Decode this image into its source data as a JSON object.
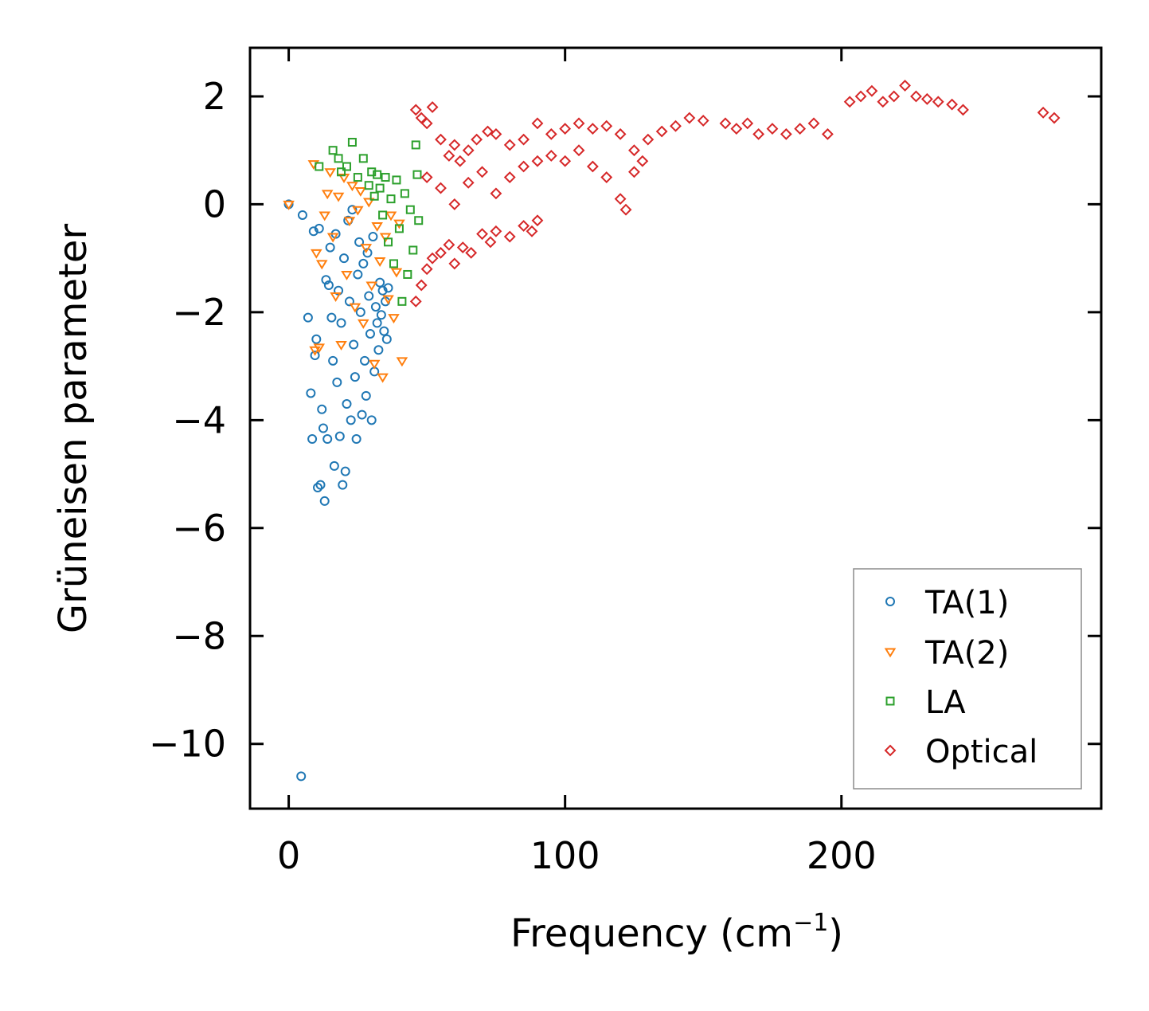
{
  "chart_data": {
    "type": "scatter",
    "title": "",
    "xlabel": "Frequency (cm",
    "xlabel_sup": "−1",
    "xlabel_close": ")",
    "ylabel": "Grüneisen parameter",
    "xlim": [
      -14,
      294
    ],
    "ylim": [
      -11.2,
      2.9
    ],
    "xticks": [
      0,
      100,
      200
    ],
    "xtick_labels": [
      "0",
      "100",
      "200"
    ],
    "yticks": [
      2,
      0,
      -2,
      -4,
      -6,
      -8,
      -10
    ],
    "ytick_labels": [
      "2",
      "0",
      "−2",
      "−4",
      "−6",
      "−8",
      "−10"
    ],
    "legend_position": "lower-right",
    "series": [
      {
        "name": "TA(1)",
        "marker": "circle",
        "color": "#1f77b4",
        "points": [
          [
            0,
            0
          ],
          [
            4.5,
            -10.6
          ],
          [
            5,
            -0.2
          ],
          [
            7,
            -2.1
          ],
          [
            8,
            -3.5
          ],
          [
            8.5,
            -4.35
          ],
          [
            9,
            -0.5
          ],
          [
            9.5,
            -2.8
          ],
          [
            10,
            -2.5
          ],
          [
            10.5,
            -5.25
          ],
          [
            11,
            -0.45
          ],
          [
            11.5,
            -5.2
          ],
          [
            12,
            -3.8
          ],
          [
            12.5,
            -4.15
          ],
          [
            13,
            -5.5
          ],
          [
            13.5,
            -1.4
          ],
          [
            14,
            -4.35
          ],
          [
            14.5,
            -1.5
          ],
          [
            15,
            -0.8
          ],
          [
            15.5,
            -2.1
          ],
          [
            16,
            -2.9
          ],
          [
            16.5,
            -4.85
          ],
          [
            17,
            -0.55
          ],
          [
            17.5,
            -3.3
          ],
          [
            18,
            -1.6
          ],
          [
            18.5,
            -4.3
          ],
          [
            19,
            -2.2
          ],
          [
            19.5,
            -5.2
          ],
          [
            20,
            -1.0
          ],
          [
            20.5,
            -4.95
          ],
          [
            21,
            -3.7
          ],
          [
            21.5,
            -0.3
          ],
          [
            22,
            -1.8
          ],
          [
            22.5,
            -4.0
          ],
          [
            23,
            -0.1
          ],
          [
            23.5,
            -2.6
          ],
          [
            24,
            -3.2
          ],
          [
            24.5,
            -4.35
          ],
          [
            25,
            -1.3
          ],
          [
            25.5,
            -0.7
          ],
          [
            26,
            -2.0
          ],
          [
            26.5,
            -3.9
          ],
          [
            27,
            -1.1
          ],
          [
            27.5,
            -2.9
          ],
          [
            28,
            -3.55
          ],
          [
            28.5,
            -0.9
          ],
          [
            29,
            -1.7
          ],
          [
            29.5,
            -2.4
          ],
          [
            30,
            -4.0
          ],
          [
            30.5,
            -0.6
          ],
          [
            31,
            -3.1
          ],
          [
            31.5,
            -1.9
          ],
          [
            32,
            -2.2
          ],
          [
            32.5,
            -2.7
          ],
          [
            33,
            -1.45
          ],
          [
            33.5,
            -2.05
          ],
          [
            34,
            -1.6
          ],
          [
            34.5,
            -2.35
          ],
          [
            35,
            -1.8
          ],
          [
            35.5,
            -2.5
          ],
          [
            36,
            -1.55
          ]
        ]
      },
      {
        "name": "TA(2)",
        "marker": "triangle-down",
        "color": "#ff7f0e",
        "points": [
          [
            0,
            0
          ],
          [
            9,
            0.75
          ],
          [
            9.5,
            -2.7
          ],
          [
            10,
            -0.9
          ],
          [
            11,
            -2.65
          ],
          [
            12,
            -1.1
          ],
          [
            13,
            -0.2
          ],
          [
            14,
            0.2
          ],
          [
            15,
            0.6
          ],
          [
            16,
            -0.6
          ],
          [
            17,
            -1.7
          ],
          [
            18,
            0.15
          ],
          [
            19,
            -2.6
          ],
          [
            20,
            0.5
          ],
          [
            21,
            -1.3
          ],
          [
            22,
            -0.3
          ],
          [
            23,
            0.35
          ],
          [
            24,
            -1.9
          ],
          [
            25,
            -0.1
          ],
          [
            26,
            0.25
          ],
          [
            27,
            -2.2
          ],
          [
            28,
            -0.8
          ],
          [
            29,
            0.05
          ],
          [
            30,
            -1.5
          ],
          [
            31,
            -2.95
          ],
          [
            32,
            -0.4
          ],
          [
            33,
            -1.05
          ],
          [
            34,
            -3.2
          ],
          [
            35,
            -0.6
          ],
          [
            36,
            -1.75
          ],
          [
            37,
            -0.2
          ],
          [
            38,
            -2.1
          ],
          [
            39,
            -1.25
          ],
          [
            40,
            -0.35
          ],
          [
            41,
            -2.9
          ]
        ]
      },
      {
        "name": "LA",
        "marker": "square",
        "color": "#2ca02c",
        "points": [
          [
            11,
            0.7
          ],
          [
            16,
            1.0
          ],
          [
            18,
            0.85
          ],
          [
            19,
            0.6
          ],
          [
            21,
            0.7
          ],
          [
            23,
            1.15
          ],
          [
            25,
            0.5
          ],
          [
            27,
            0.85
          ],
          [
            29,
            0.35
          ],
          [
            30,
            0.6
          ],
          [
            31,
            0.15
          ],
          [
            32,
            0.55
          ],
          [
            33,
            0.3
          ],
          [
            34,
            -0.2
          ],
          [
            35,
            0.5
          ],
          [
            36,
            -0.7
          ],
          [
            37,
            0.1
          ],
          [
            38,
            -1.1
          ],
          [
            39,
            0.45
          ],
          [
            40,
            -0.45
          ],
          [
            41,
            -1.8
          ],
          [
            42,
            0.2
          ],
          [
            43,
            -1.3
          ],
          [
            44,
            -0.1
          ],
          [
            45,
            -0.85
          ],
          [
            46,
            1.1
          ],
          [
            46.5,
            0.55
          ],
          [
            47,
            -0.3
          ]
        ]
      },
      {
        "name": "Optical",
        "marker": "diamond",
        "color": "#d62728",
        "points": [
          [
            46,
            1.75
          ],
          [
            48,
            1.6
          ],
          [
            50,
            1.5
          ],
          [
            52,
            1.8
          ],
          [
            55,
            1.2
          ],
          [
            58,
            0.9
          ],
          [
            60,
            1.1
          ],
          [
            62,
            0.8
          ],
          [
            65,
            1.0
          ],
          [
            68,
            1.2
          ],
          [
            72,
            1.35
          ],
          [
            75,
            1.3
          ],
          [
            80,
            1.1
          ],
          [
            85,
            1.2
          ],
          [
            90,
            1.5
          ],
          [
            95,
            1.3
          ],
          [
            100,
            1.4
          ],
          [
            105,
            1.5
          ],
          [
            110,
            1.4
          ],
          [
            115,
            1.45
          ],
          [
            120,
            1.3
          ],
          [
            125,
            1.0
          ],
          [
            130,
            1.2
          ],
          [
            135,
            1.35
          ],
          [
            140,
            1.45
          ],
          [
            145,
            1.6
          ],
          [
            150,
            1.55
          ],
          [
            46,
            -1.8
          ],
          [
            48,
            -1.5
          ],
          [
            50,
            -1.2
          ],
          [
            52,
            -1.0
          ],
          [
            55,
            -0.9
          ],
          [
            58,
            -0.75
          ],
          [
            60,
            -1.1
          ],
          [
            63,
            -0.8
          ],
          [
            66,
            -0.9
          ],
          [
            70,
            -0.55
          ],
          [
            73,
            -0.7
          ],
          [
            75,
            -0.5
          ],
          [
            80,
            -0.6
          ],
          [
            85,
            -0.4
          ],
          [
            88,
            -0.5
          ],
          [
            90,
            -0.3
          ],
          [
            50,
            0.5
          ],
          [
            55,
            0.3
          ],
          [
            60,
            0.0
          ],
          [
            65,
            0.4
          ],
          [
            70,
            0.6
          ],
          [
            75,
            0.2
          ],
          [
            80,
            0.5
          ],
          [
            85,
            0.7
          ],
          [
            90,
            0.8
          ],
          [
            95,
            0.9
          ],
          [
            100,
            0.8
          ],
          [
            105,
            1.0
          ],
          [
            110,
            0.7
          ],
          [
            115,
            0.5
          ],
          [
            120,
            0.1
          ],
          [
            122,
            -0.1
          ],
          [
            125,
            0.6
          ],
          [
            128,
            0.8
          ],
          [
            158,
            1.5
          ],
          [
            162,
            1.4
          ],
          [
            166,
            1.5
          ],
          [
            170,
            1.3
          ],
          [
            175,
            1.4
          ],
          [
            180,
            1.3
          ],
          [
            185,
            1.4
          ],
          [
            190,
            1.5
          ],
          [
            195,
            1.3
          ],
          [
            203,
            1.9
          ],
          [
            207,
            2.0
          ],
          [
            211,
            2.1
          ],
          [
            215,
            1.9
          ],
          [
            219,
            2.0
          ],
          [
            223,
            2.2
          ],
          [
            227,
            2.0
          ],
          [
            231,
            1.95
          ],
          [
            235,
            1.9
          ],
          [
            240,
            1.85
          ],
          [
            244,
            1.75
          ],
          [
            273,
            1.7
          ],
          [
            277,
            1.6
          ]
        ]
      }
    ]
  }
}
